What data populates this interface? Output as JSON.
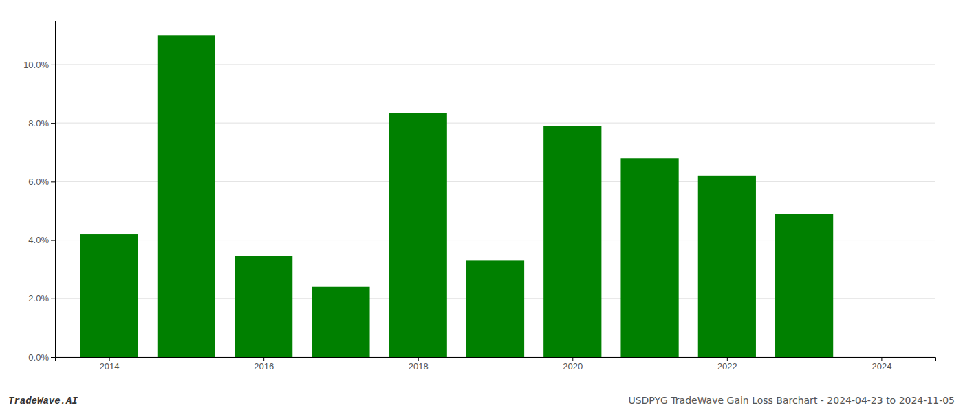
{
  "chart_data": {
    "type": "bar",
    "x": [
      2014,
      2015,
      2016,
      2017,
      2018,
      2019,
      2020,
      2021,
      2022,
      2023,
      2024
    ],
    "values": [
      0.042,
      0.11,
      0.0345,
      0.024,
      0.0835,
      0.033,
      0.079,
      0.068,
      0.062,
      0.049,
      0.0
    ],
    "color": "#008000",
    "xlim": [
      2013.3,
      2024.7
    ],
    "xticks": [
      2014,
      2016,
      2018,
      2020,
      2022,
      2024
    ],
    "ylim": [
      0,
      0.115
    ],
    "yticks": [
      {
        "value": 0.0,
        "label": "0.0%"
      },
      {
        "value": 0.02,
        "label": "2.0%"
      },
      {
        "value": 0.04,
        "label": "4.0%"
      },
      {
        "value": 0.06,
        "label": "6.0%"
      },
      {
        "value": 0.08,
        "label": "8.0%"
      },
      {
        "value": 0.1,
        "label": "10.0%"
      }
    ],
    "grid": true,
    "annotations": [
      "TradeWave.AI",
      "USDPYG TradeWave Gain Loss Barchart - 2024-04-23 to 2024-11-05"
    ]
  }
}
